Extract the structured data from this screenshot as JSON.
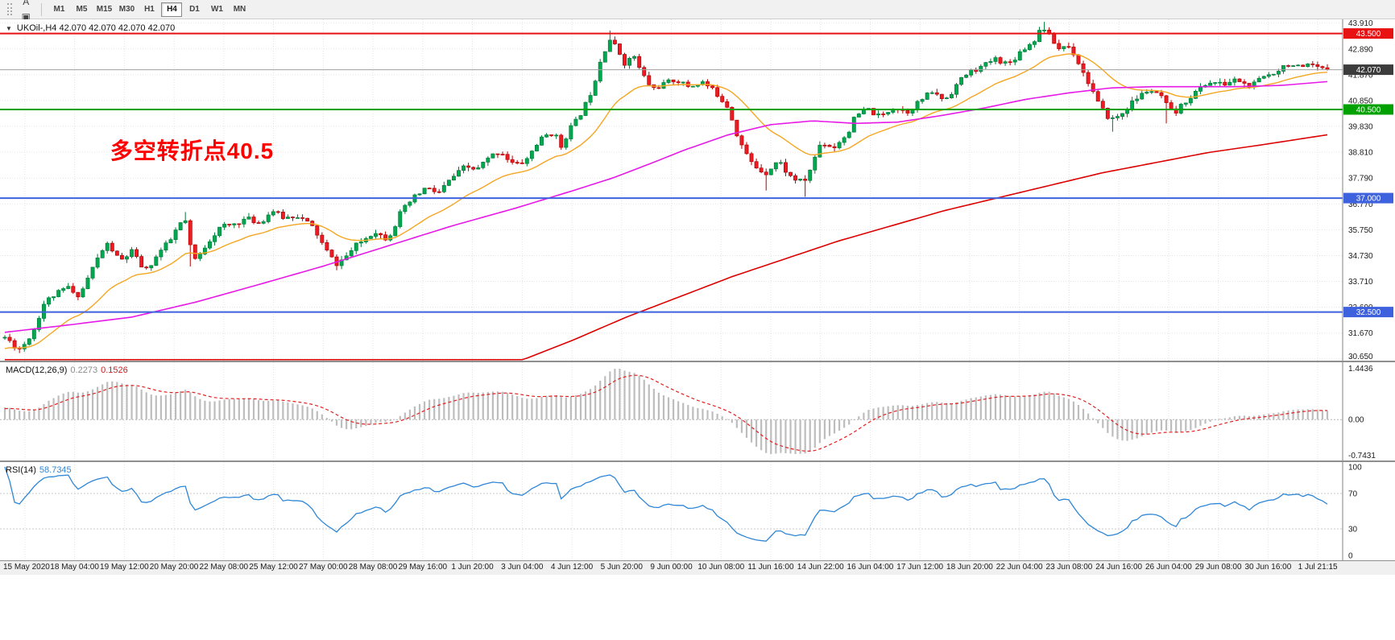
{
  "toolbar": {
    "caret": "▾",
    "tool_icons": [
      {
        "name": "new-chart-icon",
        "glyph": "▦"
      },
      {
        "name": "text-tool-icon",
        "glyph": "A"
      },
      {
        "name": "shapes-tool-icon",
        "glyph": "▣"
      },
      {
        "name": "cursor-tool-icon",
        "glyph": "⚡",
        "has_caret": true
      }
    ],
    "timeframes": [
      "M1",
      "M5",
      "M15",
      "M30",
      "H1",
      "H4",
      "D1",
      "W1",
      "MN"
    ],
    "active_timeframe": "H4"
  },
  "chart_data": {
    "type": "candlestick+indicators",
    "main": {
      "collapse_glyph": "▼",
      "symbol_line": "UKOil-,H4 42.070 42.070 42.070 42.070",
      "annotation": {
        "text": "多空转折点40.5",
        "color": "#FF0000",
        "x_frac": 0.082,
        "price": 38.9
      },
      "y_ticks": [
        "43.910",
        "42.890",
        "41.870",
        "40.850",
        "39.830",
        "38.810",
        "37.790",
        "36.770",
        "35.750",
        "34.730",
        "33.710",
        "32.690",
        "31.670",
        "30.650"
      ],
      "y_min": 30.58,
      "y_max": 44.06,
      "current_price": {
        "label": "42.070",
        "value": 42.07,
        "badge_bg": "#3c3c3c"
      },
      "levels": [
        {
          "value": 43.5,
          "label": "43.500",
          "color": "#e81212"
        },
        {
          "value": 40.5,
          "label": "40.500",
          "color": "#00a100"
        },
        {
          "value": 37.0,
          "label": "37.000",
          "color": "#3e62de"
        },
        {
          "value": 32.5,
          "label": "32.500",
          "color": "#3e62de"
        }
      ],
      "colors": {
        "up_fill": "#00a94f",
        "up_stroke": "#007a38",
        "down_fill": "#ed1c24",
        "down_stroke": "#b30000",
        "ma_fast": "#f5a623",
        "ma_mid": "#e619e6",
        "ma_slow": "#dd0000",
        "grid": "#e3e3e3",
        "current_line": "#a0a0a0"
      },
      "num_bars": 272,
      "final_close": 42.07,
      "close_path": [
        [
          0.0,
          31.5
        ],
        [
          0.005,
          31.3
        ],
        [
          0.01,
          31.0
        ],
        [
          0.016,
          31.3
        ],
        [
          0.023,
          31.9
        ],
        [
          0.029,
          32.8
        ],
        [
          0.035,
          33.1
        ],
        [
          0.042,
          33.3
        ],
        [
          0.048,
          33.5
        ],
        [
          0.053,
          33.1
        ],
        [
          0.058,
          33.3
        ],
        [
          0.065,
          34.1
        ],
        [
          0.071,
          34.7
        ],
        [
          0.077,
          35.2
        ],
        [
          0.082,
          34.9
        ],
        [
          0.087,
          34.5
        ],
        [
          0.092,
          34.7
        ],
        [
          0.096,
          34.9
        ],
        [
          0.101,
          34.5
        ],
        [
          0.106,
          34.1
        ],
        [
          0.112,
          34.5
        ],
        [
          0.119,
          35.0
        ],
        [
          0.125,
          35.3
        ],
        [
          0.129,
          35.7
        ],
        [
          0.133,
          36.0
        ],
        [
          0.136,
          36.2
        ],
        [
          0.139,
          35.5
        ],
        [
          0.141,
          34.8
        ],
        [
          0.145,
          34.5
        ],
        [
          0.149,
          34.9
        ],
        [
          0.154,
          35.3
        ],
        [
          0.159,
          35.6
        ],
        [
          0.164,
          35.9
        ],
        [
          0.169,
          35.9
        ],
        [
          0.174,
          36.0
        ],
        [
          0.179,
          36.1
        ],
        [
          0.183,
          36.2
        ],
        [
          0.188,
          36.1
        ],
        [
          0.193,
          36.0
        ],
        [
          0.198,
          36.3
        ],
        [
          0.203,
          36.5
        ],
        [
          0.208,
          36.3
        ],
        [
          0.212,
          36.2
        ],
        [
          0.217,
          36.3
        ],
        [
          0.222,
          36.3
        ],
        [
          0.227,
          36.1
        ],
        [
          0.232,
          35.9
        ],
        [
          0.237,
          35.5
        ],
        [
          0.241,
          35.1
        ],
        [
          0.246,
          34.7
        ],
        [
          0.251,
          34.4
        ],
        [
          0.256,
          34.6
        ],
        [
          0.26,
          34.8
        ],
        [
          0.265,
          35.1
        ],
        [
          0.27,
          35.3
        ],
        [
          0.275,
          35.5
        ],
        [
          0.28,
          35.7
        ],
        [
          0.285,
          35.5
        ],
        [
          0.289,
          35.4
        ],
        [
          0.294,
          35.8
        ],
        [
          0.299,
          36.4
        ],
        [
          0.304,
          36.7
        ],
        [
          0.309,
          37.0
        ],
        [
          0.314,
          37.2
        ],
        [
          0.318,
          37.4
        ],
        [
          0.323,
          37.3
        ],
        [
          0.328,
          37.2
        ],
        [
          0.333,
          37.5
        ],
        [
          0.338,
          37.8
        ],
        [
          0.343,
          38.0
        ],
        [
          0.347,
          38.2
        ],
        [
          0.352,
          38.2
        ],
        [
          0.357,
          38.1
        ],
        [
          0.362,
          38.4
        ],
        [
          0.367,
          38.6
        ],
        [
          0.371,
          38.8
        ],
        [
          0.376,
          38.8
        ],
        [
          0.381,
          38.5
        ],
        [
          0.386,
          38.3
        ],
        [
          0.391,
          38.4
        ],
        [
          0.396,
          38.6
        ],
        [
          0.4,
          39.0
        ],
        [
          0.405,
          39.3
        ],
        [
          0.41,
          39.5
        ],
        [
          0.415,
          39.6
        ],
        [
          0.418,
          39.3
        ],
        [
          0.421,
          39.0
        ],
        [
          0.424,
          39.4
        ],
        [
          0.428,
          39.8
        ],
        [
          0.433,
          40.1
        ],
        [
          0.437,
          40.5
        ],
        [
          0.441,
          40.9
        ],
        [
          0.444,
          41.3
        ],
        [
          0.447,
          41.8
        ],
        [
          0.45,
          42.4
        ],
        [
          0.454,
          42.9
        ],
        [
          0.457,
          43.3
        ],
        [
          0.46,
          43.1
        ],
        [
          0.463,
          42.9
        ],
        [
          0.466,
          42.6
        ],
        [
          0.469,
          42.3
        ],
        [
          0.473,
          42.5
        ],
        [
          0.476,
          42.6
        ],
        [
          0.479,
          42.2
        ],
        [
          0.482,
          41.9
        ],
        [
          0.486,
          41.6
        ],
        [
          0.489,
          41.3
        ],
        [
          0.494,
          41.4
        ],
        [
          0.498,
          41.5
        ],
        [
          0.503,
          41.6
        ],
        [
          0.508,
          41.7
        ],
        [
          0.513,
          41.5
        ],
        [
          0.518,
          41.4
        ],
        [
          0.523,
          41.5
        ],
        [
          0.527,
          41.6
        ],
        [
          0.532,
          41.4
        ],
        [
          0.537,
          41.2
        ],
        [
          0.542,
          40.9
        ],
        [
          0.547,
          40.6
        ],
        [
          0.55,
          40.1
        ],
        [
          0.553,
          39.6
        ],
        [
          0.558,
          39.0
        ],
        [
          0.562,
          38.6
        ],
        [
          0.566,
          38.3
        ],
        [
          0.571,
          38.1
        ],
        [
          0.576,
          38.0
        ],
        [
          0.581,
          38.3
        ],
        [
          0.585,
          38.5
        ],
        [
          0.59,
          38.1
        ],
        [
          0.595,
          37.8
        ],
        [
          0.6,
          37.7
        ],
        [
          0.604,
          37.6
        ],
        [
          0.608,
          38.0
        ],
        [
          0.611,
          38.4
        ],
        [
          0.614,
          38.8
        ],
        [
          0.617,
          39.2
        ],
        [
          0.622,
          39.1
        ],
        [
          0.627,
          39.0
        ],
        [
          0.632,
          39.3
        ],
        [
          0.637,
          39.5
        ],
        [
          0.64,
          39.9
        ],
        [
          0.643,
          40.2
        ],
        [
          0.648,
          40.4
        ],
        [
          0.653,
          40.5
        ],
        [
          0.658,
          40.3
        ],
        [
          0.662,
          40.2
        ],
        [
          0.667,
          40.4
        ],
        [
          0.672,
          40.6
        ],
        [
          0.677,
          40.5
        ],
        [
          0.682,
          40.4
        ],
        [
          0.687,
          40.6
        ],
        [
          0.691,
          40.8
        ],
        [
          0.696,
          41.0
        ],
        [
          0.701,
          41.2
        ],
        [
          0.706,
          41.0
        ],
        [
          0.711,
          40.9
        ],
        [
          0.716,
          41.2
        ],
        [
          0.72,
          41.5
        ],
        [
          0.725,
          41.8
        ],
        [
          0.73,
          42.0
        ],
        [
          0.735,
          42.1
        ],
        [
          0.74,
          42.2
        ],
        [
          0.745,
          42.4
        ],
        [
          0.749,
          42.5
        ],
        [
          0.754,
          42.4
        ],
        [
          0.759,
          42.3
        ],
        [
          0.763,
          42.5
        ],
        [
          0.768,
          42.8
        ],
        [
          0.773,
          43.0
        ],
        [
          0.778,
          43.2
        ],
        [
          0.781,
          43.5
        ],
        [
          0.785,
          43.8
        ],
        [
          0.788,
          43.5
        ],
        [
          0.791,
          43.3
        ],
        [
          0.794,
          43.1
        ],
        [
          0.797,
          42.9
        ],
        [
          0.8,
          43.0
        ],
        [
          0.804,
          43.0
        ],
        [
          0.807,
          42.8
        ],
        [
          0.81,
          42.6
        ],
        [
          0.813,
          42.2
        ],
        [
          0.817,
          41.8
        ],
        [
          0.822,
          41.3
        ],
        [
          0.826,
          40.8
        ],
        [
          0.831,
          40.4
        ],
        [
          0.836,
          40.1
        ],
        [
          0.841,
          40.2
        ],
        [
          0.846,
          40.4
        ],
        [
          0.851,
          40.7
        ],
        [
          0.855,
          40.9
        ],
        [
          0.86,
          41.1
        ],
        [
          0.865,
          41.3
        ],
        [
          0.87,
          41.1
        ],
        [
          0.875,
          41.0
        ],
        [
          0.879,
          40.6
        ],
        [
          0.884,
          40.3
        ],
        [
          0.889,
          40.6
        ],
        [
          0.894,
          40.9
        ],
        [
          0.899,
          41.1
        ],
        [
          0.903,
          41.3
        ],
        [
          0.908,
          41.5
        ],
        [
          0.913,
          41.6
        ],
        [
          0.918,
          41.5
        ],
        [
          0.923,
          41.5
        ],
        [
          0.927,
          41.6
        ],
        [
          0.932,
          41.7
        ],
        [
          0.937,
          41.5
        ],
        [
          0.942,
          41.4
        ],
        [
          0.947,
          41.6
        ],
        [
          0.952,
          41.8
        ],
        [
          0.957,
          41.9
        ],
        [
          0.961,
          42.0
        ],
        [
          0.966,
          42.2
        ],
        [
          0.971,
          42.3
        ],
        [
          0.976,
          42.2
        ],
        [
          0.981,
          42.1
        ],
        [
          0.985,
          42.2
        ],
        [
          0.99,
          42.2
        ],
        [
          0.994,
          42.1
        ],
        [
          1.0,
          42.07
        ]
      ],
      "wick_overrides": [
        [
          0.01,
          "l",
          30.88
        ],
        [
          0.136,
          "h",
          36.45
        ],
        [
          0.141,
          "l",
          34.3
        ],
        [
          0.251,
          "l",
          34.15
        ],
        [
          0.457,
          "h",
          43.62
        ],
        [
          0.576,
          "l",
          37.3
        ],
        [
          0.604,
          "l",
          37.05
        ],
        [
          0.785,
          "h",
          43.96
        ],
        [
          0.836,
          "l",
          39.62
        ],
        [
          0.879,
          "l",
          39.95
        ]
      ],
      "ma_mid_path": [
        [
          0,
          31.7
        ],
        [
          0.05,
          32.0
        ],
        [
          0.096,
          32.3
        ],
        [
          0.145,
          32.9
        ],
        [
          0.193,
          33.6
        ],
        [
          0.24,
          34.3
        ],
        [
          0.289,
          35.1
        ],
        [
          0.338,
          35.9
        ],
        [
          0.386,
          36.6
        ],
        [
          0.43,
          37.3
        ],
        [
          0.46,
          37.8
        ],
        [
          0.49,
          38.4
        ],
        [
          0.514,
          38.9
        ],
        [
          0.547,
          39.5
        ],
        [
          0.579,
          39.9
        ],
        [
          0.611,
          40.05
        ],
        [
          0.643,
          39.95
        ],
        [
          0.675,
          40.0
        ],
        [
          0.707,
          40.25
        ],
        [
          0.74,
          40.55
        ],
        [
          0.772,
          40.9
        ],
        [
          0.804,
          41.15
        ],
        [
          0.836,
          41.35
        ],
        [
          0.868,
          41.4
        ],
        [
          0.9,
          41.4
        ],
        [
          0.932,
          41.4
        ],
        [
          0.965,
          41.45
        ],
        [
          1,
          41.6
        ]
      ],
      "ma_slow_path": [
        [
          0.392,
          30.62
        ],
        [
          0.43,
          31.4
        ],
        [
          0.47,
          32.3
        ],
        [
          0.51,
          33.1
        ],
        [
          0.55,
          33.9
        ],
        [
          0.59,
          34.6
        ],
        [
          0.63,
          35.3
        ],
        [
          0.67,
          35.9
        ],
        [
          0.71,
          36.5
        ],
        [
          0.75,
          37.0
        ],
        [
          0.79,
          37.5
        ],
        [
          0.83,
          38.0
        ],
        [
          0.87,
          38.4
        ],
        [
          0.91,
          38.8
        ],
        [
          0.95,
          39.1
        ],
        [
          1,
          39.5
        ]
      ]
    },
    "macd": {
      "label": "MACD(12,26,9)",
      "value_main": "0.2273",
      "value_signal": "0.1526",
      "ticks": {
        "top": "1.4436",
        "zero": "0.00",
        "bottom": "-0.7431"
      },
      "colors": {
        "histogram": "#bdbdbd",
        "signal": "#e02020"
      }
    },
    "rsi": {
      "label": "RSI(14)",
      "value": "58.7345",
      "ticks": [
        "100",
        "70",
        "30",
        "0"
      ],
      "levels": [
        70,
        30
      ],
      "color": "#2e86d6"
    },
    "time_axis": {
      "labels": [
        "15 May 2020",
        "18 May 04:00",
        "19 May 12:00",
        "20 May 20:00",
        "22 May 08:00",
        "25 May 12:00",
        "27 May 00:00",
        "28 May 08:00",
        "29 May 16:00",
        "1 Jun 20:00",
        "3 Jun 04:00",
        "4 Jun 12:00",
        "5 Jun 20:00",
        "9 Jun 00:00",
        "10 Jun 08:00",
        "11 Jun 16:00",
        "14 Jun 22:00",
        "16 Jun 04:00",
        "17 Jun 12:00",
        "18 Jun 20:00",
        "22 Jun 04:00",
        "23 Jun 08:00",
        "24 Jun 16:00",
        "26 Jun 04:00",
        "29 Jun 08:00",
        "30 Jun 16:00",
        "1 Jul 21:15"
      ]
    }
  }
}
